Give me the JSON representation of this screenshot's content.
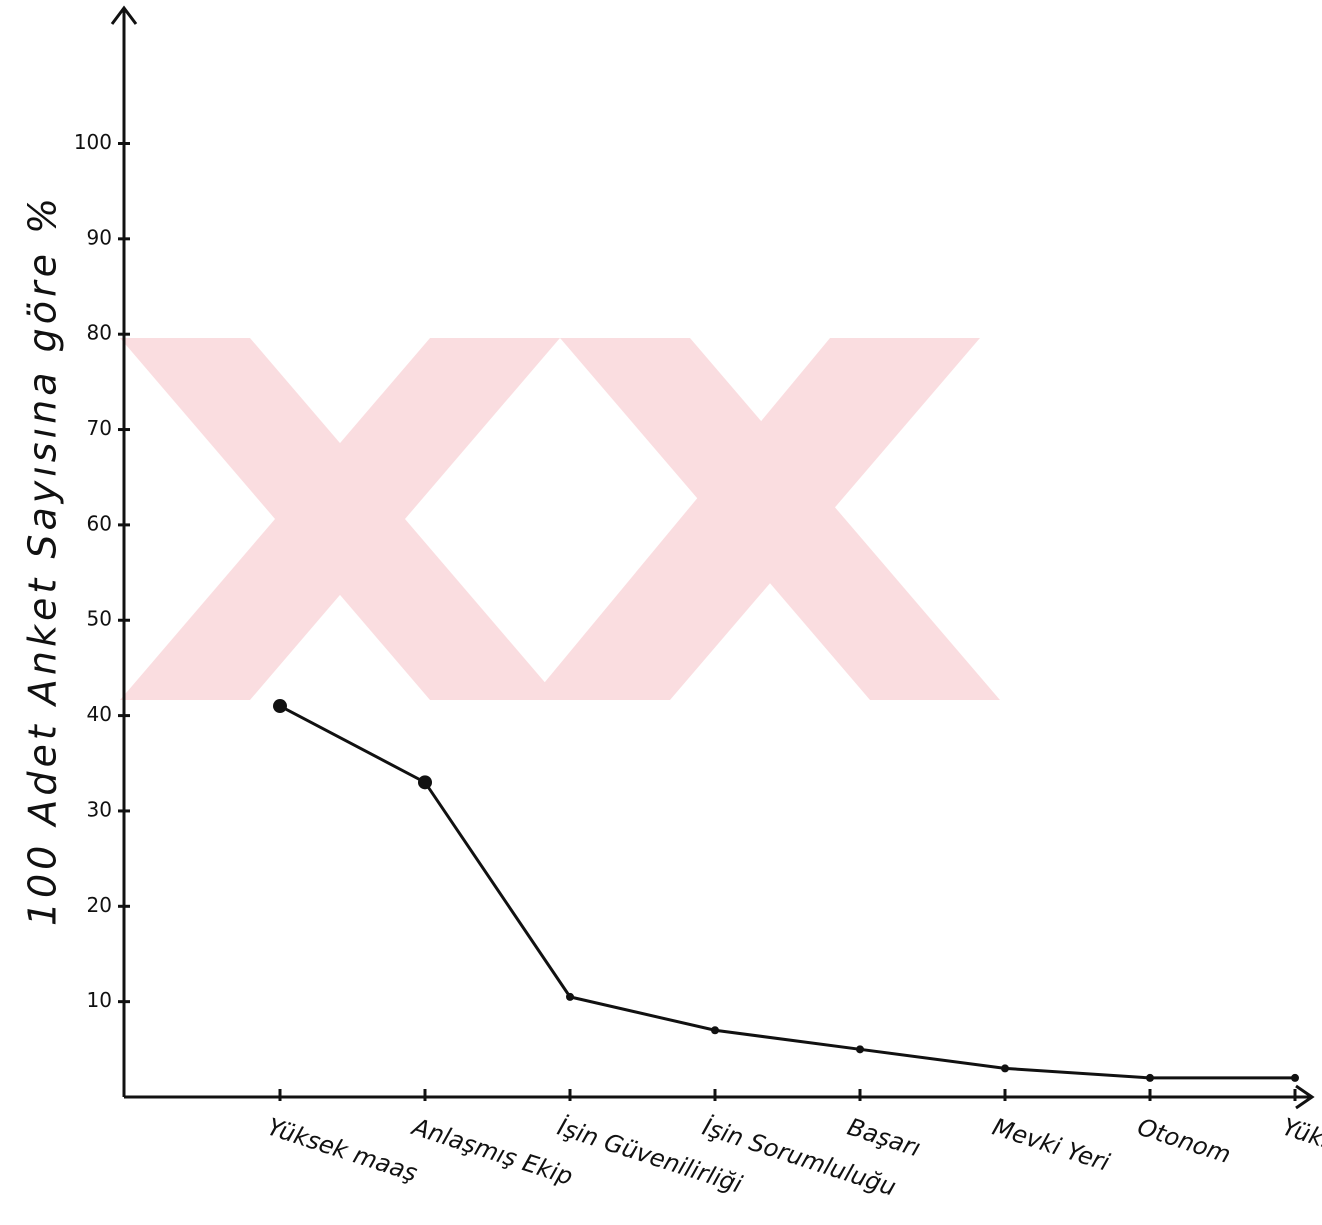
{
  "chart_data": {
    "type": "line",
    "y_label": "100 Adet Anket Sayısına göre %",
    "categories": [
      "Yüksek maaş",
      "Anlaşmış Ekip",
      "İşin Güvenilirliği",
      "İşin Sorumluluğu",
      "Başarı",
      "Mevki Yeri",
      "Otonom",
      "Yükselme"
    ],
    "values": [
      41,
      33,
      10.5,
      7,
      5,
      3,
      2,
      2
    ],
    "color": "#111111",
    "ylim": [
      0,
      114
    ],
    "yticks": [
      10,
      20,
      30,
      40,
      50,
      60,
      70,
      80,
      90,
      100
    ],
    "grid": false
  }
}
